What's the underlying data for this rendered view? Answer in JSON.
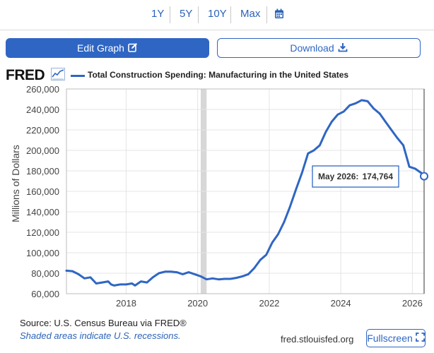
{
  "range_buttons": [
    "1Y",
    "5Y",
    "10Y",
    "Max"
  ],
  "toolbar": {
    "edit_label": "Edit Graph",
    "download_label": "Download"
  },
  "brand": {
    "logo": "FRED",
    "accent": "#2f66c3"
  },
  "chart_data": {
    "type": "line",
    "title": "Total Construction Spending: Manufacturing in the United States",
    "ylabel": "Millions of Dollars",
    "xlim": [
      "2016-05-01",
      "2026-05-01"
    ],
    "ylim": [
      60000,
      260000
    ],
    "yticks": [
      60000,
      80000,
      100000,
      120000,
      140000,
      160000,
      180000,
      200000,
      220000,
      240000,
      260000
    ],
    "ytick_labels": [
      "60,000",
      "80,000",
      "100,000",
      "120,000",
      "140,000",
      "160,000",
      "180,000",
      "200,000",
      "220,000",
      "240,000",
      "260,000"
    ],
    "xticks": [
      "2018-01-01",
      "2020-01-01",
      "2022-01-01",
      "2024-01-01",
      "2026-01-01"
    ],
    "xtick_labels": [
      "2018",
      "2020",
      "2022",
      "2024",
      "2026"
    ],
    "grid": true,
    "recessions": [
      {
        "start": "2020-02-01",
        "end": "2020-04-01"
      }
    ],
    "series": [
      {
        "name": "Total Construction Spending: Manufacturing in the United States",
        "color": "#2f66c3",
        "x": [
          "2016-05-01",
          "2016-07-01",
          "2016-09-01",
          "2016-11-01",
          "2017-01-01",
          "2017-03-01",
          "2017-05-01",
          "2017-07-01",
          "2017-08-01",
          "2017-09-01",
          "2017-11-01",
          "2018-01-01",
          "2018-03-01",
          "2018-04-01",
          "2018-06-01",
          "2018-08-01",
          "2018-10-01",
          "2018-12-01",
          "2019-02-01",
          "2019-04-01",
          "2019-06-01",
          "2019-08-01",
          "2019-10-01",
          "2019-12-01",
          "2020-02-01",
          "2020-04-01",
          "2020-06-01",
          "2020-08-01",
          "2020-10-01",
          "2020-12-01",
          "2021-02-01",
          "2021-04-01",
          "2021-06-01",
          "2021-08-01",
          "2021-10-01",
          "2021-12-01",
          "2022-02-01",
          "2022-04-01",
          "2022-06-01",
          "2022-08-01",
          "2022-10-01",
          "2022-12-01",
          "2023-02-01",
          "2023-04-01",
          "2023-06-01",
          "2023-08-01",
          "2023-10-01",
          "2023-12-01",
          "2024-02-01",
          "2024-04-01",
          "2024-06-01",
          "2024-08-01",
          "2024-10-01",
          "2024-12-01",
          "2025-02-01",
          "2025-04-01",
          "2025-06-01",
          "2025-08-01",
          "2025-10-01",
          "2025-12-01",
          "2026-02-01",
          "2026-04-01",
          "2026-05-01"
        ],
        "values": [
          82500,
          82000,
          79000,
          75000,
          76000,
          70000,
          71000,
          72000,
          69000,
          68000,
          69000,
          69000,
          70000,
          68000,
          72000,
          71000,
          76000,
          80000,
          81500,
          81500,
          81000,
          79000,
          81000,
          79000,
          77000,
          74000,
          75000,
          74000,
          74500,
          74500,
          75500,
          77000,
          79000,
          85000,
          93000,
          98000,
          110000,
          118000,
          130000,
          145000,
          162000,
          178000,
          197000,
          200000,
          205000,
          218000,
          228000,
          235000,
          238000,
          244000,
          246000,
          249000,
          248000,
          241000,
          236000,
          228000,
          220000,
          212000,
          205000,
          184000,
          182000,
          178000,
          174764
        ]
      }
    ],
    "tooltip": {
      "label": "May 2026:",
      "value": "174,764"
    }
  },
  "footer": {
    "source": "Source: U.S. Census Bureau via FRED®",
    "recession_note": "Shaded areas indicate U.S. recessions.",
    "site": "fred.stlouisfed.org",
    "fullscreen_label": "Fullscreen"
  },
  "icons": {
    "calendar": "calendar-icon",
    "edit": "edit-icon",
    "download": "download-icon",
    "fullscreen": "fullscreen-icon",
    "graph": "graph-icon"
  }
}
